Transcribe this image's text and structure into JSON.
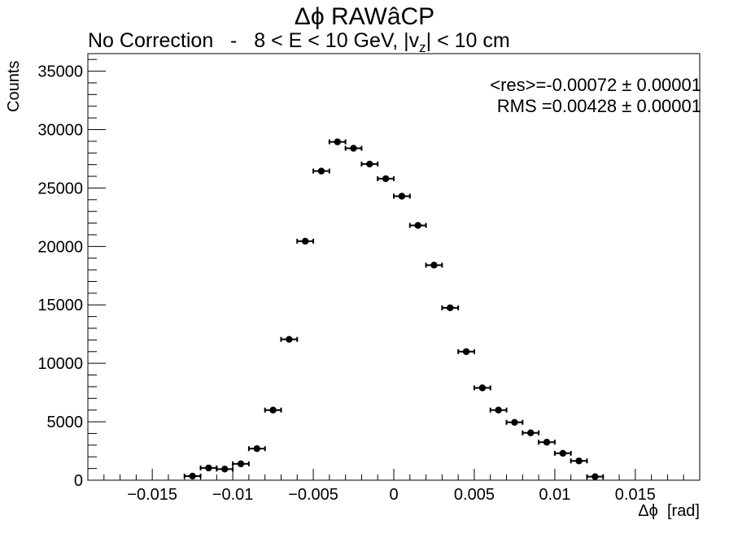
{
  "chart_data": {
    "type": "scatter",
    "title": "Δϕ RAWâCP",
    "subtitle_main": "No Correction   -   8 < E < 10 GeV, |v",
    "subtitle_sub": "z",
    "subtitle_tail": "| < 10 cm",
    "xlabel": "Δϕ  [rad]",
    "ylabel": "Counts",
    "xlim": [
      -0.019,
      0.019
    ],
    "ylim": [
      0,
      36500
    ],
    "x_ticks": [
      -0.015,
      -0.01,
      -0.005,
      0,
      0.005,
      0.01,
      0.015
    ],
    "x_tick_labels": [
      "−0.015",
      "−0.01",
      "−0.005",
      "0",
      "0.005",
      "0.01",
      "0.015"
    ],
    "y_ticks": [
      0,
      5000,
      10000,
      15000,
      20000,
      25000,
      30000,
      35000
    ],
    "y_tick_labels": [
      "0",
      "5000",
      "10000",
      "15000",
      "20000",
      "25000",
      "30000",
      "35000"
    ],
    "bin_width": 0.001,
    "grid": false,
    "marker_color": "#000000",
    "stats": {
      "res": "<res>=-0.00072 ± 0.00001",
      "rms": "RMS =0.00428 ± 0.00001"
    },
    "points": [
      {
        "x": -0.0125,
        "y": 350
      },
      {
        "x": -0.0115,
        "y": 1050
      },
      {
        "x": -0.0105,
        "y": 950
      },
      {
        "x": -0.0095,
        "y": 1400
      },
      {
        "x": -0.0085,
        "y": 2700
      },
      {
        "x": -0.0075,
        "y": 6000
      },
      {
        "x": -0.0065,
        "y": 12050
      },
      {
        "x": -0.0055,
        "y": 20450
      },
      {
        "x": -0.0045,
        "y": 26450
      },
      {
        "x": -0.0035,
        "y": 28950
      },
      {
        "x": -0.0025,
        "y": 28400
      },
      {
        "x": -0.0015,
        "y": 27050
      },
      {
        "x": -0.0005,
        "y": 25800
      },
      {
        "x": 0.0005,
        "y": 24300
      },
      {
        "x": 0.0015,
        "y": 21800
      },
      {
        "x": 0.0025,
        "y": 18400
      },
      {
        "x": 0.0035,
        "y": 14750
      },
      {
        "x": 0.0045,
        "y": 11000
      },
      {
        "x": 0.0055,
        "y": 7900
      },
      {
        "x": 0.0065,
        "y": 6000
      },
      {
        "x": 0.0075,
        "y": 4950
      },
      {
        "x": 0.0085,
        "y": 4050
      },
      {
        "x": 0.0095,
        "y": 3250
      },
      {
        "x": 0.0105,
        "y": 2300
      },
      {
        "x": 0.0115,
        "y": 1650
      },
      {
        "x": 0.0125,
        "y": 300
      }
    ]
  }
}
